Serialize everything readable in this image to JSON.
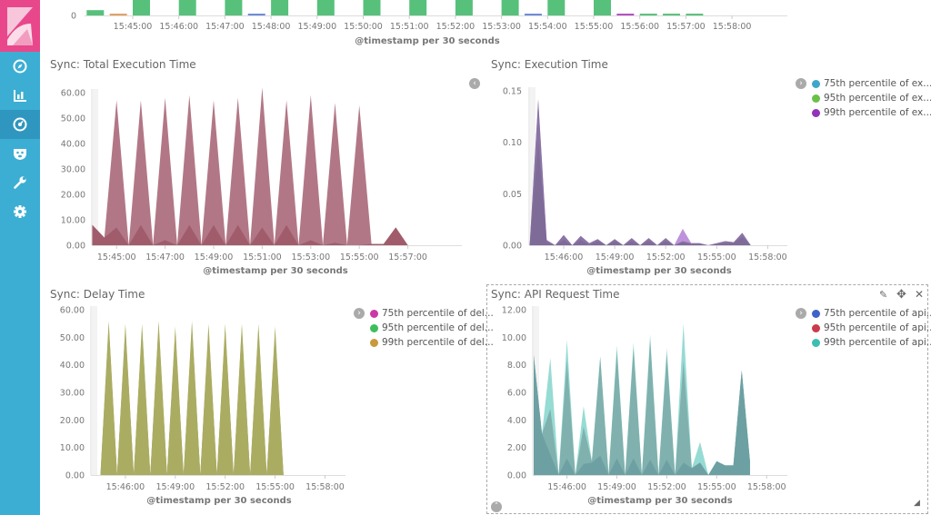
{
  "sidebar": {
    "colors": {
      "sidebar": "#3caed3",
      "logo_bg": "#e8488b",
      "active": "#2f97bf"
    },
    "items": [
      {
        "icon": "compass-icon",
        "label": "Discover"
      },
      {
        "icon": "bar-chart-icon",
        "label": "Visualize"
      },
      {
        "icon": "dashboard-icon",
        "label": "Dashboard",
        "active": true
      },
      {
        "icon": "timelion-icon",
        "label": "Timelion"
      },
      {
        "icon": "wrench-icon",
        "label": "Dev Tools"
      },
      {
        "icon": "gear-icon",
        "label": "Management"
      }
    ]
  },
  "panels": {
    "top": {
      "xlabel": "@timestamp per 30 seconds"
    },
    "total": {
      "title": "Sync: Total Execution Time"
    },
    "exec": {
      "title": "Sync: Execution Time",
      "legend": [
        {
          "label": "75th percentile of ex...",
          "color": "#3fa6c8"
        },
        {
          "label": "95th percentile of ex...",
          "color": "#6cc04a"
        },
        {
          "label": "99th percentile of ex...",
          "color": "#9234b8"
        }
      ]
    },
    "delay": {
      "title": "Sync: Delay Time",
      "legend": [
        {
          "label": "75th percentile of del...",
          "color": "#c93aa6"
        },
        {
          "label": "95th percentile of del...",
          "color": "#3cbf5a"
        },
        {
          "label": "99th percentile of del...",
          "color": "#c9993c"
        }
      ]
    },
    "api": {
      "title": "Sync: API Request Time",
      "legend": [
        {
          "label": "75th percentile of api...",
          "color": "#3f63c6"
        },
        {
          "label": "95th percentile of api...",
          "color": "#c93c4a"
        },
        {
          "label": "99th percentile of api...",
          "color": "#3cbfb2"
        }
      ]
    }
  },
  "chart_data": [
    {
      "id": "top",
      "type": "bar",
      "xlabel": "@timestamp per 30 seconds",
      "ylabel": "",
      "start": "15:44:00",
      "interval_seconds": 30,
      "yticks": [
        "0"
      ],
      "ylim": [
        0,
        3.5
      ],
      "xticks": [
        "15:45:00",
        "15:46:00",
        "15:47:00",
        "15:48:00",
        "15:49:00",
        "15:50:00",
        "15:51:00",
        "15:52:00",
        "15:53:00",
        "15:54:00",
        "15:55:00",
        "15:56:00",
        "15:57:00",
        "15:58:00"
      ],
      "bars": [
        {
          "t": "15:44:00",
          "v": 1.2,
          "color": "#57c17b"
        },
        {
          "t": "15:44:30",
          "v": 0.4,
          "color": "#e0a060"
        },
        {
          "t": "15:45:00",
          "v": 10,
          "color": "#57c17b"
        },
        {
          "t": "15:46:00",
          "v": 10,
          "color": "#57c17b"
        },
        {
          "t": "15:47:00",
          "v": 10,
          "color": "#57c17b"
        },
        {
          "t": "15:47:30",
          "v": 0.4,
          "color": "#6a8ad8"
        },
        {
          "t": "15:48:00",
          "v": 10,
          "color": "#57c17b"
        },
        {
          "t": "15:49:00",
          "v": 10,
          "color": "#57c17b"
        },
        {
          "t": "15:50:00",
          "v": 10,
          "color": "#57c17b"
        },
        {
          "t": "15:51:00",
          "v": 10,
          "color": "#57c17b"
        },
        {
          "t": "15:52:00",
          "v": 10,
          "color": "#57c17b"
        },
        {
          "t": "15:53:00",
          "v": 10,
          "color": "#57c17b"
        },
        {
          "t": "15:53:30",
          "v": 0.4,
          "color": "#6a8ad8"
        },
        {
          "t": "15:54:00",
          "v": 10,
          "color": "#57c17b"
        },
        {
          "t": "15:55:00",
          "v": 10,
          "color": "#57c17b"
        },
        {
          "t": "15:55:30",
          "v": 0.4,
          "color": "#b34cc0"
        },
        {
          "t": "15:56:00",
          "v": 0.4,
          "color": "#57c17b"
        },
        {
          "t": "15:56:30",
          "v": 0.4,
          "color": "#57c17b"
        },
        {
          "t": "15:57:00",
          "v": 0.4,
          "color": "#57c17b"
        }
      ]
    },
    {
      "id": "total",
      "type": "area",
      "title": "Sync: Total Execution Time",
      "xlabel": "@timestamp per 30 seconds",
      "start": "15:44:00",
      "interval_seconds": 30,
      "ylim": [
        0,
        62
      ],
      "yticks": [
        "0.00",
        "10.00",
        "20.00",
        "30.00",
        "40.00",
        "50.00",
        "60.00"
      ],
      "xticks": [
        "15:45:00",
        "15:47:00",
        "15:49:00",
        "15:51:00",
        "15:53:00",
        "15:55:00",
        "15:57:00"
      ],
      "series": [
        {
          "fill": "#ab6b7c",
          "values": [
            8,
            3,
            57,
            0,
            57,
            0,
            58,
            0,
            59,
            0,
            57,
            0,
            58,
            0,
            62,
            0,
            57,
            0,
            59,
            0,
            56,
            0,
            55,
            0.5,
            0.5,
            7,
            0
          ]
        },
        {
          "fill": "#9f5a6a",
          "values": [
            8,
            3,
            7,
            0,
            8,
            0,
            2,
            0,
            8,
            0,
            8,
            0,
            8,
            0,
            7,
            0,
            8,
            0,
            2,
            0,
            1,
            0,
            0,
            0.5,
            0.5,
            7,
            0
          ]
        }
      ]
    },
    {
      "id": "exec",
      "type": "area",
      "title": "Sync: Execution Time",
      "xlabel": "@timestamp per 30 seconds",
      "start": "15:44:00",
      "interval_seconds": 30,
      "ylim": [
        0,
        0.15
      ],
      "yticks": [
        "0.00",
        "0.05",
        "0.10",
        "0.15"
      ],
      "xticks": [
        "15:46:00",
        "15:49:00",
        "15:52:00",
        "15:55:00",
        "15:58:00"
      ],
      "series": [
        {
          "name": "95th percentile of ex...",
          "fill": "#b98ad8",
          "values": [
            0,
            0.14,
            0.005,
            0,
            0.01,
            0,
            0.009,
            0.002,
            0.006,
            0,
            0.006,
            0,
            0.007,
            0,
            0.007,
            0,
            0.007,
            0,
            0.016,
            0.002,
            0.002,
            0,
            0.002,
            0.004,
            0.003,
            0.012,
            0
          ]
        },
        {
          "name": "99th percentile of ex...",
          "fill": "#87719f",
          "values": [
            0,
            0.142,
            0.005,
            0,
            0.01,
            0,
            0.009,
            0.002,
            0.006,
            0,
            0.006,
            0,
            0.007,
            0,
            0.007,
            0,
            0.007,
            0,
            0.004,
            0.002,
            0.002,
            0,
            0.002,
            0.004,
            0.003,
            0.012,
            0
          ]
        },
        {
          "name": "75th percentile of ex...",
          "fill": "#7d6a96",
          "values": [
            0,
            0.1,
            0.003,
            0,
            0.005,
            0,
            0.005,
            0,
            0.004,
            0,
            0.004,
            0,
            0.004,
            0,
            0.004,
            0,
            0.004,
            0,
            0.003,
            0.001,
            0.001,
            0,
            0.001,
            0.002,
            0.002,
            0.008,
            0
          ]
        }
      ]
    },
    {
      "id": "delay",
      "type": "area",
      "title": "Sync: Delay Time",
      "xlabel": "@timestamp per 30 seconds",
      "start": "15:44:30",
      "interval_seconds": 30,
      "ylim": [
        0,
        60
      ],
      "yticks": [
        "0.00",
        "10.00",
        "20.00",
        "30.00",
        "40.00",
        "50.00",
        "60.00"
      ],
      "xticks": [
        "15:46:00",
        "15:49:00",
        "15:52:00",
        "15:55:00",
        "15:58:00"
      ],
      "series": [
        {
          "name": "99th percentile of del...",
          "fill": "#afb267",
          "values": [
            0,
            56,
            0,
            55,
            0,
            55,
            0,
            56,
            0,
            54,
            0,
            56,
            0,
            55,
            0,
            55,
            0,
            55,
            0,
            55,
            0,
            54,
            0
          ]
        },
        {
          "name": "95th percentile of del...",
          "fill": "#acae64",
          "values": [
            0,
            55,
            0,
            54,
            0,
            54,
            0,
            55,
            0,
            53,
            0,
            55,
            0,
            54,
            0,
            54,
            0,
            54,
            0,
            54,
            0,
            53,
            0
          ]
        },
        {
          "name": "75th percentile of del...",
          "fill": "#a9ab62",
          "values": [
            0,
            54,
            0,
            53,
            0,
            53,
            0,
            54,
            0,
            52,
            0,
            54,
            0,
            53,
            0,
            53,
            0,
            53,
            0,
            53,
            0,
            52,
            0
          ]
        }
      ]
    },
    {
      "id": "api",
      "type": "area",
      "title": "Sync: API Request Time",
      "xlabel": "@timestamp per 30 seconds",
      "start": "15:44:00",
      "interval_seconds": 30,
      "ylim": [
        0,
        12
      ],
      "yticks": [
        "0.00",
        "2.00",
        "4.00",
        "6.00",
        "8.00",
        "10.00",
        "12.00"
      ],
      "xticks": [
        "15:46:00",
        "15:49:00",
        "15:52:00",
        "15:55:00",
        "15:58:00"
      ],
      "series": [
        {
          "name": "99th percentile of api...",
          "fill": "#8dd8d0",
          "values": [
            8.7,
            3,
            8.5,
            0,
            9.8,
            0,
            5,
            1,
            8.6,
            0,
            9.4,
            0,
            9.6,
            0,
            10.2,
            0,
            9.2,
            0,
            11,
            0.5,
            2.4,
            0,
            1,
            0.7,
            0.7,
            7.6,
            1
          ]
        },
        {
          "name": "95th percentile of api...",
          "fill": "#7eaeaa",
          "values": [
            8.7,
            3,
            4.8,
            0,
            8.3,
            0,
            3.5,
            1,
            8.6,
            0,
            9,
            0,
            9.2,
            0,
            9.8,
            0,
            8.8,
            0,
            8.3,
            0.5,
            0.9,
            0,
            1,
            0.7,
            0.7,
            7.6,
            1
          ]
        },
        {
          "name": "75th percentile of api...",
          "fill": "#6b9ea2",
          "values": [
            8.7,
            3,
            1.5,
            0,
            1.2,
            0,
            0.8,
            0.9,
            1.4,
            0,
            1.2,
            0,
            1.2,
            0,
            1.1,
            0,
            1.1,
            0,
            0.9,
            0.5,
            0.9,
            0,
            1,
            0.7,
            0.7,
            7.6,
            1
          ]
        }
      ]
    }
  ]
}
